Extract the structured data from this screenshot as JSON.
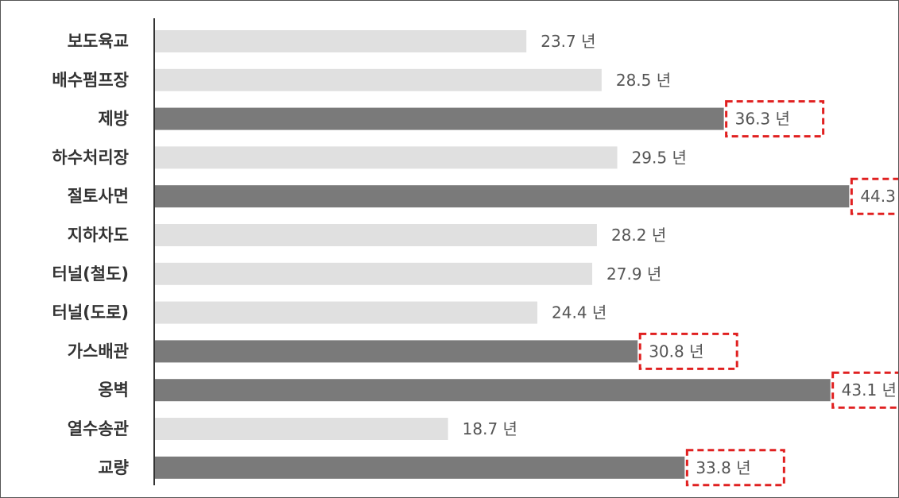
{
  "chart_data": {
    "type": "bar",
    "orientation": "horizontal",
    "categories": [
      "보도육교",
      "배수펌프장",
      "제방",
      "하수처리장",
      "절토사면",
      "지하차도",
      "터널(철도)",
      "터널(도로)",
      "가스배관",
      "옹벽",
      "열수송관",
      "교량"
    ],
    "values": [
      23.7,
      28.5,
      36.3,
      29.5,
      44.3,
      28.2,
      27.9,
      24.4,
      30.8,
      43.1,
      18.7,
      33.8
    ],
    "unit": "년",
    "highlighted": [
      false,
      false,
      true,
      false,
      true,
      false,
      false,
      false,
      true,
      true,
      false,
      true
    ],
    "title": "",
    "xlabel": "",
    "ylabel": "",
    "xlim": [
      0,
      45.5
    ],
    "grid": false,
    "legend": "none"
  },
  "colors": {
    "bar": "#e0e0e0",
    "bar_highlight": "#7a7a7a",
    "highlight_box": "#e02020",
    "axis": "#333333",
    "category_text": "#333333",
    "value_text": "#555555"
  }
}
